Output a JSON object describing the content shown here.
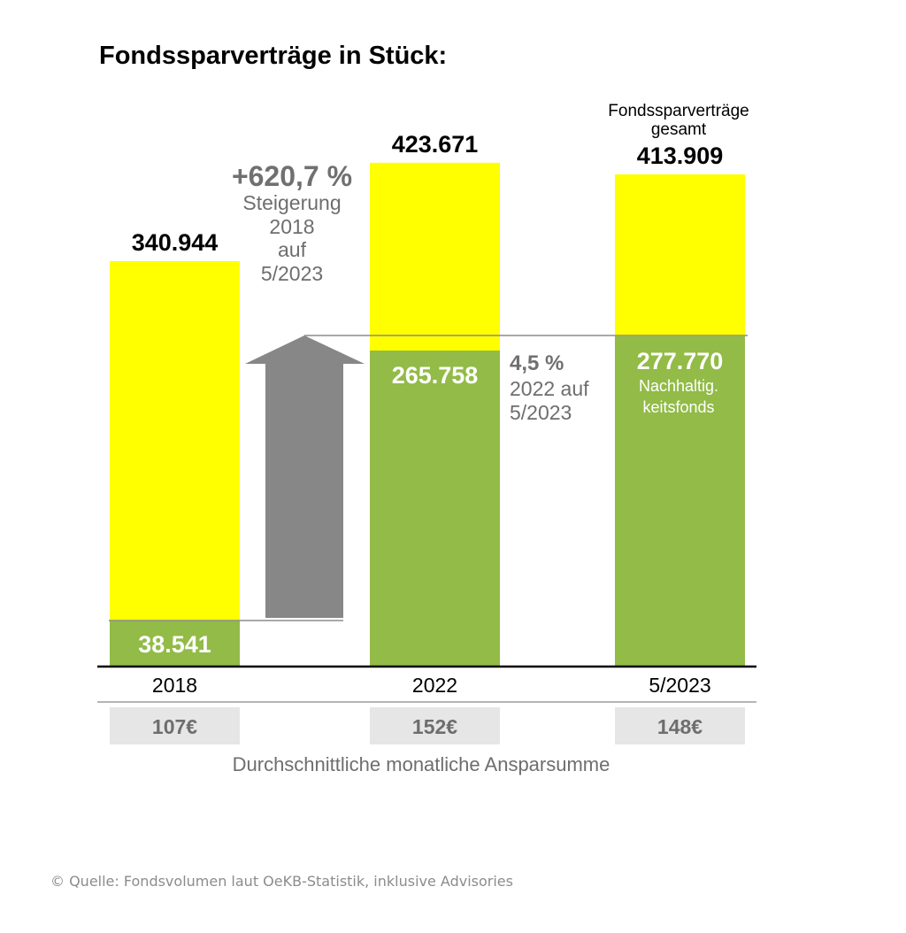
{
  "chart_data": {
    "type": "bar",
    "title": "Fondssparverträge in Stück:",
    "categories": [
      "2018",
      "2022",
      "5/2023"
    ],
    "series": [
      {
        "name": "Fondssparverträge gesamt",
        "values": [
          340944,
          423671,
          413909
        ],
        "labels": [
          "340.944",
          "423.671",
          "413.909"
        ],
        "color": "#FFFF00"
      },
      {
        "name": "Nachhaltigkeitsfonds",
        "values": [
          38541,
          265758,
          277770
        ],
        "labels": [
          "38.541",
          "265.758",
          "277.770"
        ],
        "color": "#92BB47"
      }
    ],
    "ylim": [
      0,
      450000
    ],
    "grid": false,
    "legend_text": {
      "total_line1": "Fondssparverträge",
      "total_line2": "gesamt",
      "green_line1": "Nachhaltig.",
      "green_line2": "keitsfonds"
    },
    "annotations": {
      "growth_pct": "+620,7 %",
      "growth_lines": [
        "Steigerung",
        "2018",
        "auf",
        "5/2023"
      ],
      "growth2_pct": "4,5 %",
      "growth2_lines": [
        "2022 auf",
        "5/2023"
      ]
    },
    "avg_monthly": {
      "values": [
        "107€",
        "152€",
        "148€"
      ],
      "caption": "Durchschnittliche monatliche Ansparsumme"
    }
  },
  "colors": {
    "yellow": "#FFFF00",
    "green": "#92BB47",
    "arrow": "#878787",
    "cell": "#E6E6E6"
  },
  "source": "© Quelle: Fondsvolumen laut OeKB-Statistik, inklusive Advisories"
}
